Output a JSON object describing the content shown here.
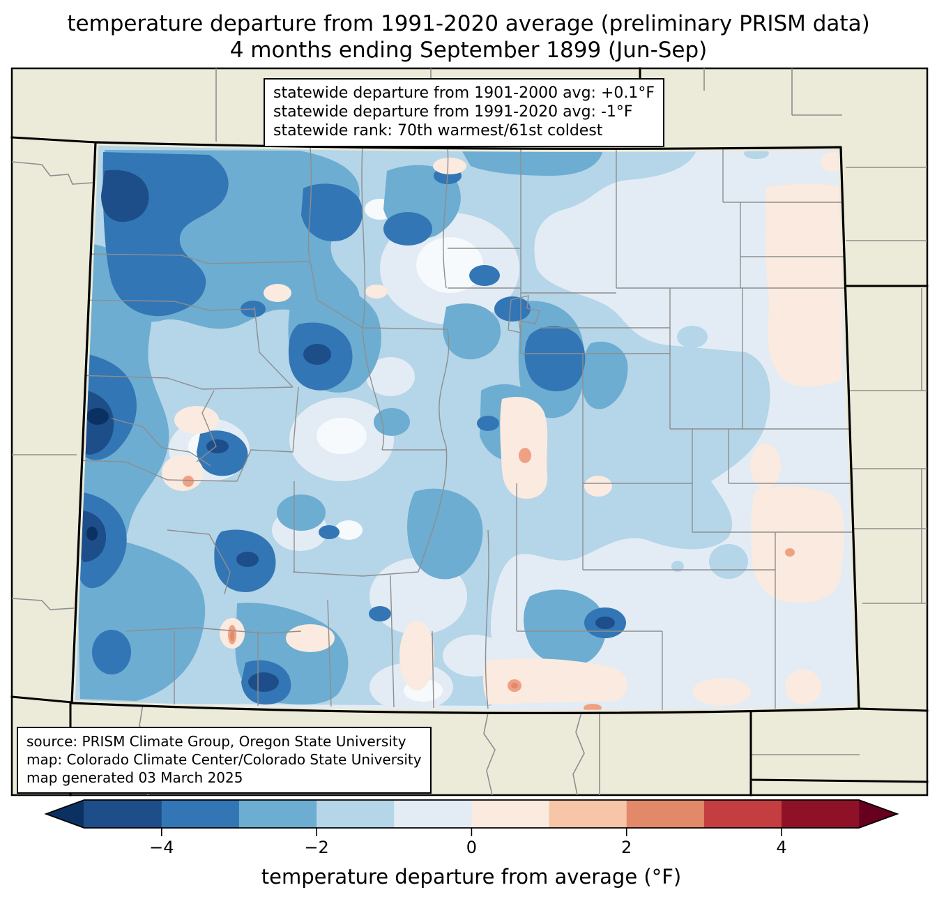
{
  "title": {
    "line1": "temperature departure from 1991-2020 average (preliminary PRISM data)",
    "line2": "4 months ending September 1899 (Jun-Sep)"
  },
  "stats_box": {
    "line1": "statewide departure from 1901-2000 avg: +0.1°F",
    "line2": "statewide departure from 1991-2020 avg: -1°F",
    "line3": "statewide rank: 70th warmest/61st coldest"
  },
  "source_box": {
    "line1": "source: PRISM Climate Group, Oregon State University",
    "line2": "map: Colorado Climate Center/Colorado State University",
    "line3": "map generated 03 March 2025"
  },
  "map": {
    "region": "Colorado",
    "content": "filled temperature-anomaly contours over Colorado with county boundaries; neighboring states shown in beige"
  },
  "colorbar": {
    "label": "temperature departure from average (°F)",
    "ticks": [
      "−4",
      "−2",
      "0",
      "2",
      "4"
    ],
    "tick_values": [
      -4,
      -2,
      0,
      2,
      4
    ],
    "range_min": -5,
    "range_max": 5,
    "segment_colors": [
      "#1d4e89",
      "#3376b5",
      "#6dadd1",
      "#b5d5e8",
      "#e3ecf4",
      "#faeadf",
      "#f7c5a8",
      "#e2896a",
      "#c43d40",
      "#8e1127"
    ],
    "under_color": "#0b3162",
    "over_color": "#67001f"
  },
  "colors": {
    "beige": "#ecebd9",
    "county": "#8e8e8e",
    "state_border": "#000000",
    "frame": "#000000",
    "box_bg": "#ffffff",
    "lvl_m5": "#1d4e89",
    "lvl_m4": "#3376b5",
    "lvl_m3": "#6dadd1",
    "lvl_m2": "#b5d5e8",
    "lvl_m1": "#e3ecf4",
    "lvl_p1": "#faeadf",
    "lvl_p2": "#f7c5a8",
    "lvl_p3": "#e2896a",
    "under": "#0b3162",
    "over": "#67001f",
    "white_pocket": "#f7fafc",
    "salmon_spot": "#f0a183"
  }
}
